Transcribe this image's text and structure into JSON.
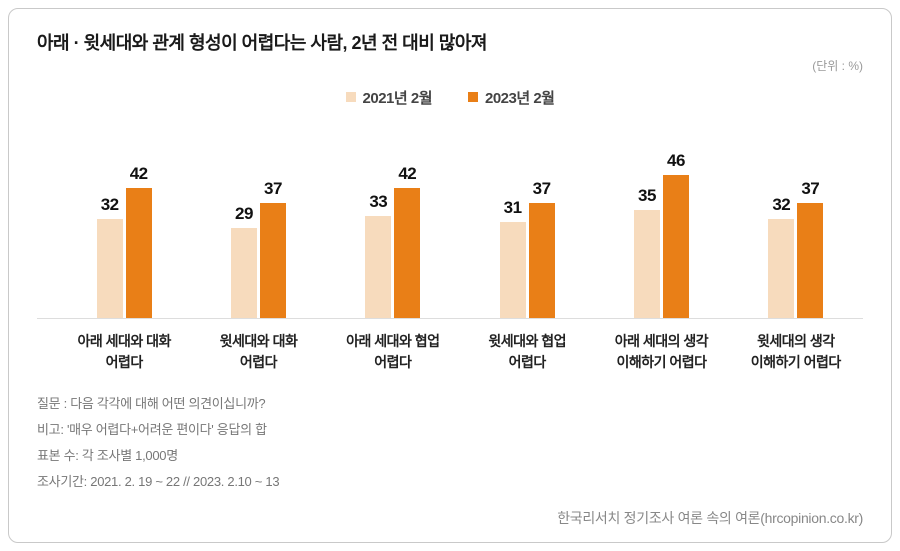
{
  "header": {
    "title": "아래 · 윗세대와 관계 형성이 어렵다는 사람, 2년 전 대비 많아져",
    "unit_label": "(단위 : %)"
  },
  "chart_data": {
    "type": "bar",
    "title": "아래 · 윗세대와 관계 형성이 어렵다는 사람, 2년 전 대비 많아져",
    "unit": "%",
    "categories": [
      "아래 세대와 대화\n어렵다",
      "윗세대와 대화\n어렵다",
      "아래 세대와 협업\n어렵다",
      "윗세대와 협업\n어렵다",
      "아래 세대의 생각\n이해하기 어렵다",
      "윗세대의 생각\n이해하기 어렵다"
    ],
    "series": [
      {
        "name": "2021년 2월",
        "color": "#f7dbbd",
        "values": [
          32,
          29,
          33,
          31,
          35,
          32
        ]
      },
      {
        "name": "2023년 2월",
        "color": "#e97f17",
        "values": [
          42,
          37,
          42,
          37,
          46,
          37
        ]
      }
    ],
    "ylim": [
      0,
      50
    ],
    "grid": false,
    "legend_position": "top-center",
    "data_labels": true
  },
  "notes": {
    "lines": [
      "질문 : 다음 각각에 대해 어떤 의견이십니까?",
      "비고: '매우 어렵다+어려운 편이다' 응답의 합",
      "표본 수: 각 조사별 1,000명",
      "조사기간: 2021. 2. 19 ~ 22  // 2023.  2.10 ~ 13"
    ]
  },
  "footer": {
    "source": "한국리서치 정기조사 여론 속의 여론(hrcopinion.co.kr)"
  }
}
